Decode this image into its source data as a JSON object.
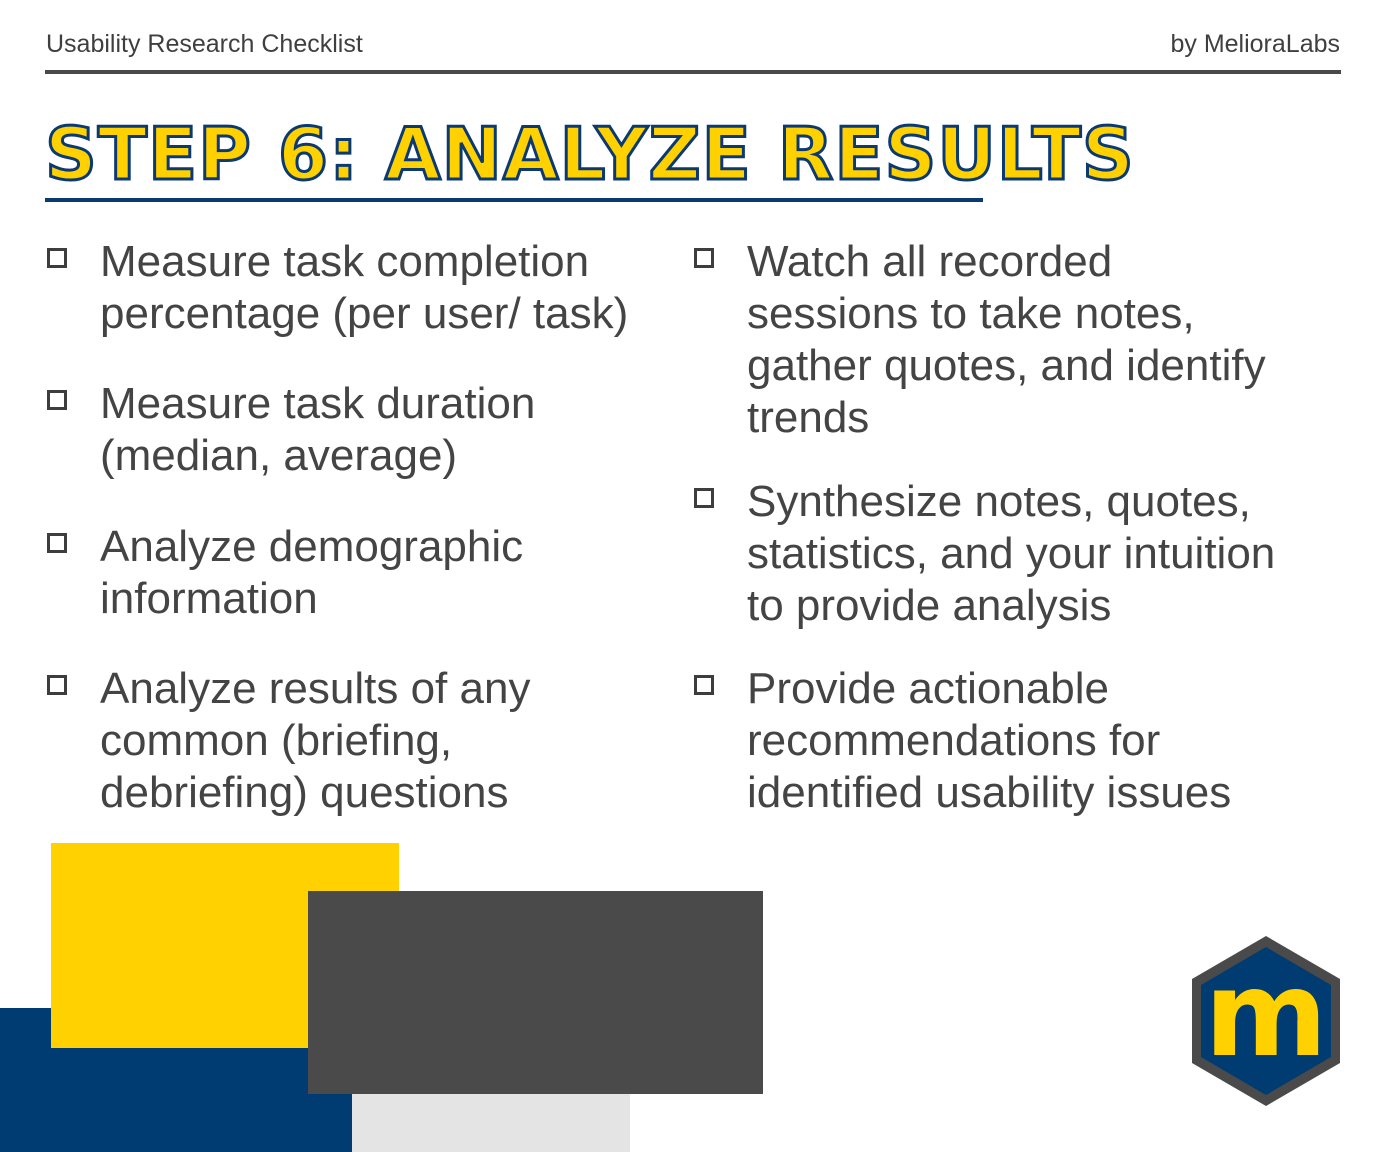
{
  "header": {
    "left_text": "Usability Research Checklist",
    "right_text": "by MelioraLabs"
  },
  "title": "STEP 6: ANALYZE RESULTS",
  "left_items": [
    "Measure task completion\npercentage (per user/ task)",
    "Measure task duration\n(median, average)",
    "Analyze demographic\ninformation",
    "Analyze results of any\ncommon (briefing,\ndebriefing) questions"
  ],
  "right_items": [
    "Watch all recorded\nsessions to take notes,\ngather  quotes, and identify\ntrends",
    "Synthesize notes, quotes,\nstatistics, and your intuition\nto provide analysis",
    "Provide actionable\nrecommendations for\nidentified usability issues"
  ],
  "logo": {
    "letter": "m",
    "colors": {
      "outline": "#4a4a4a",
      "fill": "#003b71",
      "letter": "#ffd100"
    }
  },
  "colors": {
    "navy": "#003b71",
    "yellow": "#ffd100",
    "dark_gray": "#4a4a4a",
    "light_gray": "#e4e4e4",
    "text": "#444444"
  }
}
